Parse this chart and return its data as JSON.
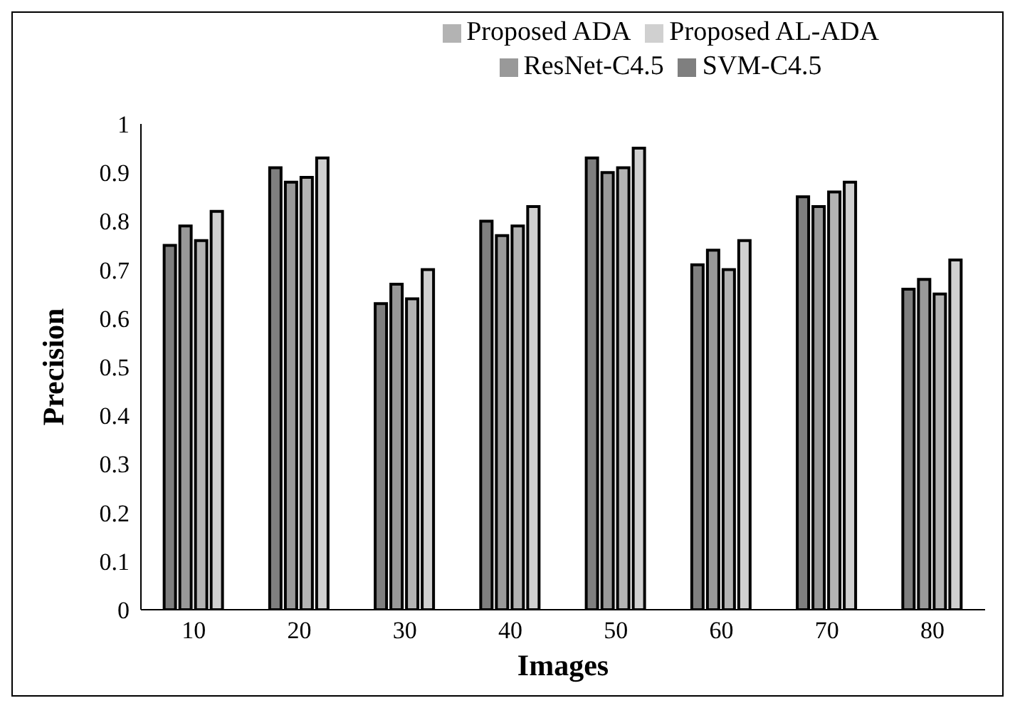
{
  "chart_data": {
    "type": "bar",
    "xlabel": "Images",
    "ylabel": "Precision",
    "categories": [
      "10",
      "20",
      "30",
      "40",
      "50",
      "60",
      "70",
      "80"
    ],
    "series": [
      {
        "name": "SVM-C4.5",
        "color": "#7f7f7f",
        "values": [
          0.75,
          0.91,
          0.63,
          0.8,
          0.93,
          0.71,
          0.85,
          0.66
        ]
      },
      {
        "name": "ResNet-C4.5",
        "color": "#999999",
        "values": [
          0.79,
          0.88,
          0.67,
          0.77,
          0.9,
          0.74,
          0.83,
          0.68
        ]
      },
      {
        "name": "Proposed ADA",
        "color": "#b3b3b3",
        "values": [
          0.76,
          0.89,
          0.64,
          0.79,
          0.91,
          0.7,
          0.86,
          0.65
        ]
      },
      {
        "name": "Proposed AL-ADA",
        "color": "#d0d0d0",
        "values": [
          0.82,
          0.93,
          0.7,
          0.83,
          0.95,
          0.76,
          0.88,
          0.72
        ]
      }
    ],
    "ylim": [
      0,
      1
    ],
    "yticks": [
      0,
      {
        "value": 0.1,
        "label": "0.1"
      },
      {
        "value": 0.2,
        "label": "0.2"
      },
      {
        "value": 0.3,
        "label": "0.3"
      },
      {
        "value": 0.4,
        "label": "0.4"
      },
      {
        "value": 0.5,
        "label": "0.5"
      },
      {
        "value": 0.6,
        "label": "0.6"
      },
      {
        "value": 0.7,
        "label": "0.7"
      },
      {
        "value": 0.8,
        "label": "0.8"
      },
      {
        "value": 0.9,
        "label": "0.9"
      },
      1
    ],
    "grid": false,
    "legend": "top"
  }
}
